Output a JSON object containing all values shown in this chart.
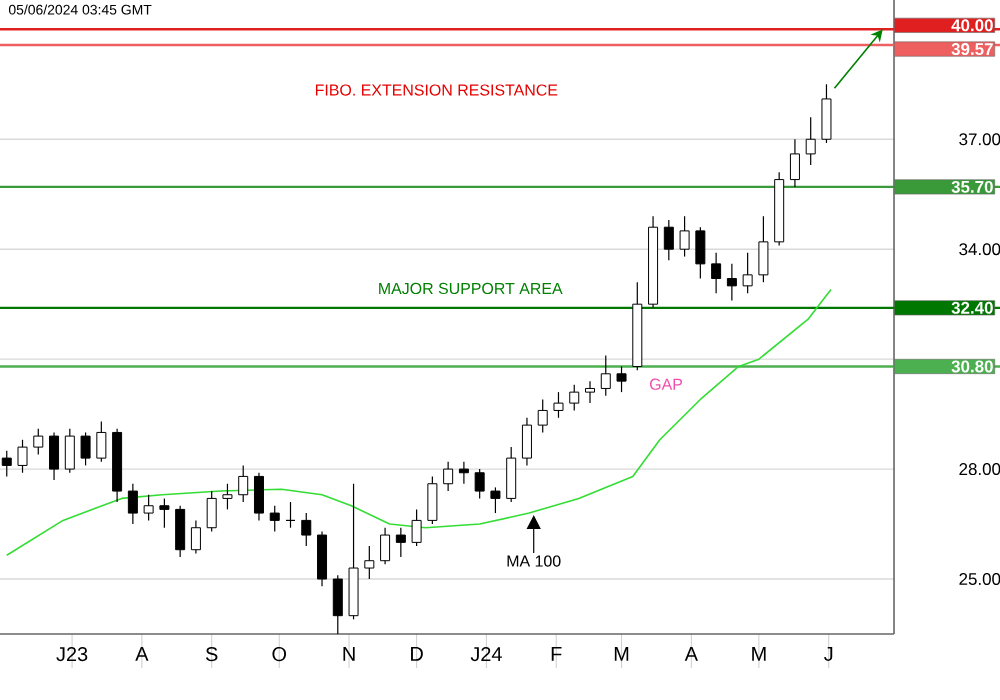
{
  "chart_data": {
    "type": "candlestick",
    "title": "05/06/2024 03:45 GMT",
    "color": "#000000",
    "x": [
      "2023-06-02",
      "2023-06-09",
      "2023-06-16",
      "2023-06-23",
      "2023-06-30",
      "2023-07-07",
      "2023-07-14",
      "2023-07-21",
      "2023-07-28",
      "2023-08-04",
      "2023-08-11",
      "2023-08-18",
      "2023-08-25",
      "2023-09-01",
      "2023-09-08",
      "2023-09-15",
      "2023-09-22",
      "2023-09-29",
      "2023-10-06",
      "2023-10-13",
      "2023-10-20",
      "2023-10-27",
      "2023-11-03",
      "2023-11-10",
      "2023-11-17",
      "2023-11-24",
      "2023-12-01",
      "2023-12-08",
      "2023-12-15",
      "2023-12-22",
      "2023-12-29",
      "2024-01-05",
      "2024-01-12",
      "2024-01-19",
      "2024-01-26",
      "2024-02-02",
      "2024-02-09",
      "2024-02-16",
      "2024-02-23",
      "2024-03-01",
      "2024-03-08",
      "2024-03-15",
      "2024-03-22",
      "2024-03-29",
      "2024-04-05",
      "2024-04-12",
      "2024-04-19",
      "2024-04-26",
      "2024-05-03",
      "2024-05-10",
      "2024-05-17",
      "2024-05-24",
      "2024-05-31"
    ],
    "ohlc": [
      [
        28.3,
        28.5,
        27.8,
        28.1
      ],
      [
        28.1,
        28.8,
        27.9,
        28.6
      ],
      [
        28.6,
        29.1,
        28.4,
        28.9
      ],
      [
        28.9,
        29.0,
        27.7,
        28.0
      ],
      [
        28.0,
        29.1,
        27.9,
        28.9
      ],
      [
        28.9,
        29.0,
        28.1,
        28.3
      ],
      [
        28.3,
        29.3,
        28.2,
        29.0
      ],
      [
        29.0,
        29.1,
        27.1,
        27.4
      ],
      [
        27.4,
        27.6,
        26.5,
        26.8
      ],
      [
        26.8,
        27.3,
        26.6,
        27.0
      ],
      [
        27.0,
        27.2,
        26.4,
        26.9
      ],
      [
        26.9,
        27.0,
        25.6,
        25.8
      ],
      [
        25.8,
        26.6,
        25.7,
        26.4
      ],
      [
        26.4,
        27.4,
        26.3,
        27.2
      ],
      [
        27.2,
        27.6,
        26.9,
        27.3
      ],
      [
        27.3,
        28.1,
        27.1,
        27.8
      ],
      [
        27.8,
        27.9,
        26.6,
        26.8
      ],
      [
        26.8,
        27.0,
        26.3,
        26.6
      ],
      [
        26.6,
        27.1,
        26.4,
        26.6
      ],
      [
        26.6,
        26.8,
        25.9,
        26.2
      ],
      [
        26.2,
        26.3,
        24.8,
        25.0
      ],
      [
        25.0,
        25.1,
        23.5,
        24.0
      ],
      [
        24.0,
        27.6,
        23.9,
        25.3
      ],
      [
        25.3,
        25.9,
        25.0,
        25.5
      ],
      [
        25.5,
        26.4,
        25.4,
        26.2
      ],
      [
        26.2,
        26.4,
        25.6,
        26.0
      ],
      [
        26.0,
        26.9,
        25.9,
        26.6
      ],
      [
        26.6,
        27.8,
        26.5,
        27.6
      ],
      [
        27.6,
        28.2,
        27.4,
        28.0
      ],
      [
        28.0,
        28.2,
        27.6,
        27.9
      ],
      [
        27.9,
        28.0,
        27.2,
        27.4
      ],
      [
        27.4,
        27.5,
        26.8,
        27.2
      ],
      [
        27.2,
        28.6,
        27.1,
        28.3
      ],
      [
        28.3,
        29.4,
        28.1,
        29.2
      ],
      [
        29.2,
        29.9,
        29.0,
        29.6
      ],
      [
        29.6,
        30.1,
        29.4,
        29.8
      ],
      [
        29.8,
        30.3,
        29.6,
        30.1
      ],
      [
        30.1,
        30.4,
        29.8,
        30.2
      ],
      [
        30.2,
        31.1,
        30.0,
        30.6
      ],
      [
        30.6,
        30.8,
        30.1,
        30.4
      ],
      [
        30.8,
        33.1,
        30.7,
        32.5
      ],
      [
        32.5,
        34.9,
        32.4,
        34.6
      ],
      [
        34.6,
        34.8,
        33.7,
        34.0
      ],
      [
        34.0,
        34.9,
        33.8,
        34.5
      ],
      [
        34.5,
        34.6,
        33.2,
        33.6
      ],
      [
        33.6,
        33.9,
        32.8,
        33.2
      ],
      [
        33.2,
        33.6,
        32.6,
        33.0
      ],
      [
        33.0,
        33.9,
        32.8,
        33.3
      ],
      [
        33.3,
        34.9,
        33.1,
        34.2
      ],
      [
        34.2,
        36.1,
        34.1,
        35.9
      ],
      [
        35.9,
        37.0,
        35.7,
        36.6
      ],
      [
        36.6,
        37.6,
        36.3,
        37.0
      ],
      [
        37.0,
        38.5,
        36.9,
        38.1
      ]
    ],
    "series": [
      {
        "type": "line",
        "color": "#33dd33",
        "x": [
          "2023-06-02",
          "2023-06-27",
          "2023-07-23",
          "2023-08-10",
          "2023-09-05",
          "2023-10-02",
          "2023-10-20",
          "2023-11-02",
          "2023-11-19",
          "2023-12-05",
          "2023-12-29",
          "2024-01-20",
          "2024-02-11",
          "2024-03-06",
          "2024-03-18",
          "2024-04-05",
          "2024-04-22",
          "2024-05-01",
          "2024-05-23",
          "2024-06-02"
        ],
        "values": [
          25.65,
          26.6,
          27.2,
          27.3,
          27.4,
          27.45,
          27.3,
          27.0,
          26.5,
          26.4,
          26.5,
          26.8,
          27.2,
          27.8,
          28.8,
          29.9,
          30.8,
          31.0,
          32.1,
          32.9
        ]
      }
    ],
    "xlim": [
      "2023-05-30",
      "2024-06-30"
    ],
    "ylim": [
      23.5,
      40.8
    ],
    "xticks": [
      {
        "value": "2023-07-01",
        "label": "J23"
      },
      {
        "value": "2023-08-01",
        "label": "A"
      },
      {
        "value": "2023-09-01",
        "label": "S"
      },
      {
        "value": "2023-10-01",
        "label": "O"
      },
      {
        "value": "2023-11-01",
        "label": "N"
      },
      {
        "value": "2023-12-01",
        "label": "D"
      },
      {
        "value": "2024-01-01",
        "label": "J24"
      },
      {
        "value": "2024-02-01",
        "label": "F"
      },
      {
        "value": "2024-03-01",
        "label": "M"
      },
      {
        "value": "2024-04-01",
        "label": "A"
      },
      {
        "value": "2024-05-01",
        "label": "M"
      },
      {
        "value": "2024-06-01",
        "label": "J"
      }
    ],
    "yticks": [
      {
        "value": 25,
        "label": "25.00"
      },
      {
        "value": 28,
        "label": "28.00"
      },
      {
        "value": 31,
        "label": null
      },
      {
        "value": 34,
        "label": "34.00"
      },
      {
        "value": 37,
        "label": "37.00"
      }
    ],
    "grid": "y",
    "ref_lines": [
      {
        "axis": "y",
        "value": 40.0,
        "label": "40.00",
        "color": "#e02020"
      },
      {
        "axis": "y",
        "value": 39.57,
        "label": "39.57",
        "color": "#ee6060"
      },
      {
        "axis": "y",
        "value": 35.7,
        "label": "35.70",
        "color": "#3a9a3a"
      },
      {
        "axis": "y",
        "value": 32.4,
        "label": "32.40",
        "color": "#007700"
      },
      {
        "axis": "y",
        "value": 30.8,
        "label": "30.80",
        "color": "#4caf50"
      }
    ],
    "annotations": [
      "FIBO. EXTENSION RESISTANCE",
      "MAJOR SUPPORT AREA",
      "GAP",
      {
        "text": "MA 100",
        "x": "2024-01-22",
        "y": 26.8
      }
    ]
  }
}
